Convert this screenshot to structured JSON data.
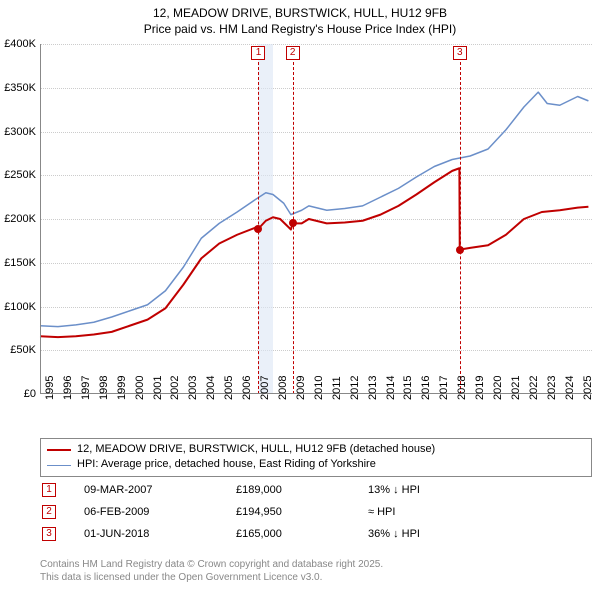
{
  "title_line1": "12, MEADOW DRIVE, BURSTWICK, HULL, HU12 9FB",
  "title_line2": "Price paid vs. HM Land Registry's House Price Index (HPI)",
  "chart": {
    "type": "line",
    "background_color": "#ffffff",
    "grid_color": "#cccccc",
    "axis_color": "#888888",
    "ylim": [
      0,
      400000
    ],
    "ytick_step": 50000,
    "y_prefix": "£",
    "y_suffix": "K",
    "ytick_labels": [
      "£0",
      "£50K",
      "£100K",
      "£150K",
      "£200K",
      "£250K",
      "£300K",
      "£350K",
      "£400K"
    ],
    "xlim": [
      1995,
      2025.8
    ],
    "xtick_step": 1,
    "xtick_labels": [
      "1995",
      "1996",
      "1997",
      "1998",
      "1999",
      "2000",
      "2001",
      "2002",
      "2003",
      "2004",
      "2005",
      "2006",
      "2007",
      "2008",
      "2009",
      "2010",
      "2011",
      "2012",
      "2013",
      "2014",
      "2015",
      "2016",
      "2017",
      "2018",
      "2019",
      "2020",
      "2021",
      "2022",
      "2023",
      "2024",
      "2025"
    ],
    "tick_fontsize": 11,
    "title_fontsize": 12,
    "series": [
      {
        "name": "property",
        "label": "12, MEADOW DRIVE, BURSTWICK, HULL, HU12 9FB (detached house)",
        "color": "#c00000",
        "line_width": 2,
        "data": [
          {
            "x": 1995.0,
            "y": 66000
          },
          {
            "x": 1996.0,
            "y": 65000
          },
          {
            "x": 1997.0,
            "y": 66000
          },
          {
            "x": 1998.0,
            "y": 68000
          },
          {
            "x": 1999.0,
            "y": 71000
          },
          {
            "x": 2000.0,
            "y": 78000
          },
          {
            "x": 2001.0,
            "y": 85000
          },
          {
            "x": 2002.0,
            "y": 98000
          },
          {
            "x": 2003.0,
            "y": 125000
          },
          {
            "x": 2004.0,
            "y": 155000
          },
          {
            "x": 2005.0,
            "y": 172000
          },
          {
            "x": 2006.0,
            "y": 182000
          },
          {
            "x": 2007.0,
            "y": 190000
          },
          {
            "x": 2007.19,
            "y": 189000
          },
          {
            "x": 2007.6,
            "y": 198000
          },
          {
            "x": 2008.0,
            "y": 202000
          },
          {
            "x": 2008.4,
            "y": 200000
          },
          {
            "x": 2009.0,
            "y": 188000
          },
          {
            "x": 2009.1,
            "y": 194950
          },
          {
            "x": 2009.6,
            "y": 195000
          },
          {
            "x": 2010.0,
            "y": 200000
          },
          {
            "x": 2011.0,
            "y": 195000
          },
          {
            "x": 2012.0,
            "y": 196000
          },
          {
            "x": 2013.0,
            "y": 198000
          },
          {
            "x": 2014.0,
            "y": 205000
          },
          {
            "x": 2015.0,
            "y": 215000
          },
          {
            "x": 2016.0,
            "y": 228000
          },
          {
            "x": 2017.0,
            "y": 242000
          },
          {
            "x": 2018.0,
            "y": 255000
          },
          {
            "x": 2018.4,
            "y": 258000
          },
          {
            "x": 2018.42,
            "y": 165000
          },
          {
            "x": 2019.0,
            "y": 167000
          },
          {
            "x": 2020.0,
            "y": 170000
          },
          {
            "x": 2021.0,
            "y": 182000
          },
          {
            "x": 2022.0,
            "y": 200000
          },
          {
            "x": 2023.0,
            "y": 208000
          },
          {
            "x": 2024.0,
            "y": 210000
          },
          {
            "x": 2025.0,
            "y": 213000
          },
          {
            "x": 2025.6,
            "y": 214000
          }
        ]
      },
      {
        "name": "hpi",
        "label": "HPI: Average price, detached house, East Riding of Yorkshire",
        "color": "#6b8fc9",
        "line_width": 1.5,
        "data": [
          {
            "x": 1995.0,
            "y": 78000
          },
          {
            "x": 1996.0,
            "y": 77000
          },
          {
            "x": 1997.0,
            "y": 79000
          },
          {
            "x": 1998.0,
            "y": 82000
          },
          {
            "x": 1999.0,
            "y": 88000
          },
          {
            "x": 2000.0,
            "y": 95000
          },
          {
            "x": 2001.0,
            "y": 102000
          },
          {
            "x": 2002.0,
            "y": 118000
          },
          {
            "x": 2003.0,
            "y": 145000
          },
          {
            "x": 2004.0,
            "y": 178000
          },
          {
            "x": 2005.0,
            "y": 195000
          },
          {
            "x": 2006.0,
            "y": 208000
          },
          {
            "x": 2007.0,
            "y": 222000
          },
          {
            "x": 2007.6,
            "y": 230000
          },
          {
            "x": 2008.0,
            "y": 228000
          },
          {
            "x": 2008.6,
            "y": 218000
          },
          {
            "x": 2009.0,
            "y": 205000
          },
          {
            "x": 2009.6,
            "y": 210000
          },
          {
            "x": 2010.0,
            "y": 215000
          },
          {
            "x": 2011.0,
            "y": 210000
          },
          {
            "x": 2012.0,
            "y": 212000
          },
          {
            "x": 2013.0,
            "y": 215000
          },
          {
            "x": 2014.0,
            "y": 225000
          },
          {
            "x": 2015.0,
            "y": 235000
          },
          {
            "x": 2016.0,
            "y": 248000
          },
          {
            "x": 2017.0,
            "y": 260000
          },
          {
            "x": 2018.0,
            "y": 268000
          },
          {
            "x": 2019.0,
            "y": 272000
          },
          {
            "x": 2020.0,
            "y": 280000
          },
          {
            "x": 2021.0,
            "y": 302000
          },
          {
            "x": 2022.0,
            "y": 328000
          },
          {
            "x": 2022.8,
            "y": 345000
          },
          {
            "x": 2023.3,
            "y": 332000
          },
          {
            "x": 2024.0,
            "y": 330000
          },
          {
            "x": 2025.0,
            "y": 340000
          },
          {
            "x": 2025.6,
            "y": 335000
          }
        ]
      }
    ],
    "markers": [
      {
        "n": "1",
        "x": 2007.19,
        "y": 189000,
        "band_to": 2008.0
      },
      {
        "n": "2",
        "x": 2009.1,
        "y": 194950,
        "band_to": null
      },
      {
        "n": "3",
        "x": 2018.42,
        "y": 165000,
        "band_to": null
      }
    ],
    "marker_color": "#c00000",
    "marker_band_color": "#dce6f5",
    "marker_dot_radius": 4
  },
  "legend": {
    "border_color": "#888888",
    "fontsize": 11,
    "items": [
      {
        "color": "#c00000",
        "width": 2,
        "label": "12, MEADOW DRIVE, BURSTWICK, HULL, HU12 9FB (detached house)"
      },
      {
        "color": "#6b8fc9",
        "width": 1.5,
        "label": "HPI: Average price, detached house, East Riding of Yorkshire"
      }
    ]
  },
  "events": [
    {
      "n": "1",
      "date": "09-MAR-2007",
      "price": "£189,000",
      "delta": "13% ↓ HPI"
    },
    {
      "n": "2",
      "date": "06-FEB-2009",
      "price": "£194,950",
      "delta": "≈ HPI"
    },
    {
      "n": "3",
      "date": "01-JUN-2018",
      "price": "£165,000",
      "delta": "36% ↓ HPI"
    }
  ],
  "footer_line1": "Contains HM Land Registry data © Crown copyright and database right 2025.",
  "footer_line2": "This data is licensed under the Open Government Licence v3.0."
}
